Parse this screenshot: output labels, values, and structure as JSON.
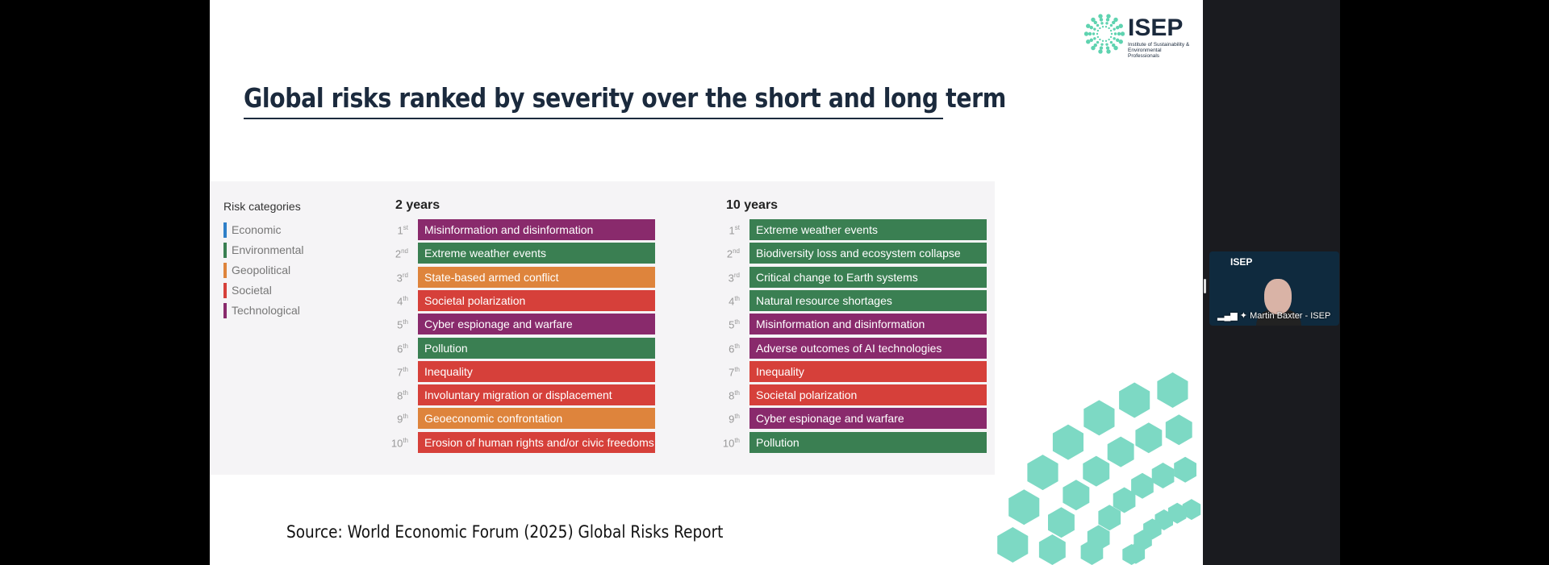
{
  "slide": {
    "title": "Global risks ranked by severity over the short and long term",
    "source": "Source:  World Economic Forum (2025) Global Risks Report",
    "logo": {
      "name": "ISEP",
      "subtitle": "Institute of Sustainability & Environmental Professionals"
    },
    "legend": {
      "title": "Risk categories",
      "items": [
        {
          "label": "Economic",
          "color": "#2f7fc8"
        },
        {
          "label": "Environmental",
          "color": "#3a7f52"
        },
        {
          "label": "Geopolitical",
          "color": "#de843c"
        },
        {
          "label": "Societal",
          "color": "#d6403a"
        },
        {
          "label": "Technological",
          "color": "#892a6c"
        }
      ]
    },
    "ranks": [
      [
        "1",
        "st"
      ],
      [
        "2",
        "nd"
      ],
      [
        "3",
        "rd"
      ],
      [
        "4",
        "th"
      ],
      [
        "5",
        "th"
      ],
      [
        "6",
        "th"
      ],
      [
        "7",
        "th"
      ],
      [
        "8",
        "th"
      ],
      [
        "9",
        "th"
      ],
      [
        "10",
        "th"
      ]
    ],
    "short_term": {
      "title": "2 years",
      "risks": [
        {
          "label": "Misinformation and disinformation",
          "category": "Technological"
        },
        {
          "label": "Extreme weather events",
          "category": "Environmental"
        },
        {
          "label": "State-based armed conflict",
          "category": "Geopolitical"
        },
        {
          "label": "Societal polarization",
          "category": "Societal"
        },
        {
          "label": "Cyber espionage and warfare",
          "category": "Technological"
        },
        {
          "label": "Pollution",
          "category": "Environmental"
        },
        {
          "label": "Inequality",
          "category": "Societal"
        },
        {
          "label": "Involuntary migration or displacement",
          "category": "Societal"
        },
        {
          "label": "Geoeconomic confrontation",
          "category": "Geopolitical"
        },
        {
          "label": "Erosion of human rights and/or civic freedoms",
          "category": "Societal"
        }
      ]
    },
    "long_term": {
      "title": "10 years",
      "risks": [
        {
          "label": "Extreme weather events",
          "category": "Environmental"
        },
        {
          "label": "Biodiversity loss and ecosystem collapse",
          "category": "Environmental"
        },
        {
          "label": "Critical change to Earth systems",
          "category": "Environmental"
        },
        {
          "label": "Natural resource shortages",
          "category": "Environmental"
        },
        {
          "label": "Misinformation and disinformation",
          "category": "Technological"
        },
        {
          "label": "Adverse outcomes of AI technologies",
          "category": "Technological"
        },
        {
          "label": "Inequality",
          "category": "Societal"
        },
        {
          "label": "Societal polarization",
          "category": "Societal"
        },
        {
          "label": "Cyber espionage and warfare",
          "category": "Technological"
        },
        {
          "label": "Pollution",
          "category": "Environmental"
        }
      ]
    }
  },
  "video": {
    "participant_name": "Martin Baxter - ISEP",
    "logo": "ISEP",
    "icons": [
      "signal-icon",
      "pin-icon"
    ]
  }
}
